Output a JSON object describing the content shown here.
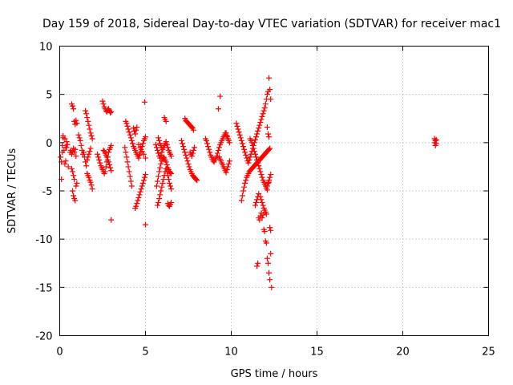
{
  "chart_data": {
    "type": "scatter",
    "title": "Day 159 of 2018, Sidereal Day-to-day VTEC variation (SDTVAR) for receiver mac1",
    "xlabel": "GPS time / hours",
    "ylabel": "SDTVAR / TECUs",
    "xlim": [
      0,
      25
    ],
    "ylim": [
      -20,
      10
    ],
    "xticks": [
      0,
      5,
      10,
      15,
      20,
      25
    ],
    "yticks": [
      -20,
      -15,
      -10,
      -5,
      0,
      5,
      10
    ],
    "xtick_labels": [
      "0",
      "5",
      "10",
      "15",
      "20",
      "25"
    ],
    "ytick_labels": [
      "-20",
      "-15",
      "-10",
      "-5",
      "0",
      "5",
      "10"
    ],
    "grid": true,
    "marker": "+",
    "color": "#ff0000",
    "series": [
      {
        "name": "SDTVAR mac1",
        "x": [
          0.05,
          0.1,
          0.15,
          0.2,
          0.25,
          0.3,
          0.35,
          0.4,
          0.1,
          0.15,
          0.2,
          0.3,
          0.35,
          0.4,
          0.45,
          0.5,
          0.6,
          0.65,
          0.7,
          0.75,
          0.8,
          0.85,
          0.9,
          0.95,
          0.7,
          0.75,
          0.8,
          0.85,
          0.9,
          0.95,
          1.0,
          0.7,
          0.75,
          0.8,
          0.85,
          0.75,
          0.8,
          0.85,
          0.9,
          0.95,
          1.0,
          1.1,
          1.15,
          1.2,
          1.25,
          1.3,
          1.35,
          1.4,
          1.45,
          1.5,
          1.55,
          1.6,
          1.65,
          1.7,
          1.75,
          1.8,
          1.5,
          1.55,
          1.6,
          1.65,
          1.7,
          1.75,
          1.8,
          1.85,
          1.9,
          1.6,
          1.65,
          1.7,
          1.75,
          1.8,
          1.85,
          1.9,
          2.2,
          2.25,
          2.3,
          2.35,
          2.4,
          2.45,
          2.5,
          2.55,
          2.6,
          2.65,
          2.7,
          2.75,
          2.8,
          2.85,
          2.9,
          2.95,
          3.0,
          2.5,
          2.55,
          2.6,
          2.65,
          2.7,
          2.75,
          2.8,
          2.85,
          2.9,
          2.95,
          3.0,
          2.55,
          2.6,
          2.65,
          2.7,
          2.75,
          2.8,
          2.85,
          2.9,
          2.95,
          3.0,
          3.0,
          3.8,
          3.85,
          3.9,
          3.95,
          4.0,
          4.05,
          4.1,
          4.15,
          4.2,
          3.85,
          3.9,
          3.95,
          4.0,
          4.05,
          4.1,
          4.15,
          4.2,
          4.25,
          4.3,
          4.35,
          4.4,
          4.45,
          4.5,
          4.55,
          4.6,
          4.65,
          4.7,
          4.75,
          4.8,
          4.85,
          4.9,
          4.95,
          5.0,
          4.4,
          4.45,
          4.5,
          4.55,
          4.6,
          4.65,
          4.7,
          4.75,
          4.8,
          4.85,
          4.9,
          4.95,
          5.0,
          4.3,
          4.35,
          4.4,
          4.45,
          4.5,
          4.6,
          4.7,
          4.8,
          4.9,
          5.0,
          4.95,
          5.0,
          5.6,
          5.65,
          5.7,
          5.75,
          5.8,
          5.85,
          5.9,
          5.95,
          6.0,
          6.05,
          6.1,
          6.15,
          6.2,
          6.25,
          6.3,
          6.35,
          6.4,
          6.45,
          6.5,
          5.65,
          5.7,
          5.75,
          5.8,
          5.85,
          5.9,
          5.95,
          6.0,
          6.05,
          6.1,
          6.15,
          6.2,
          6.25,
          6.3,
          6.35,
          6.4,
          6.45,
          6.5,
          5.7,
          5.75,
          5.8,
          5.85,
          5.9,
          5.95,
          6.0,
          6.05,
          6.1,
          6.15,
          6.2,
          6.25,
          6.3,
          6.35,
          6.4,
          6.45,
          6.5,
          6.1,
          6.15,
          6.2,
          6.3,
          6.35,
          6.4,
          6.45,
          6.5,
          5.75,
          5.8,
          5.85,
          5.9,
          5.95,
          7.1,
          7.15,
          7.2,
          7.25,
          7.3,
          7.35,
          7.4,
          7.45,
          7.5,
          7.55,
          7.6,
          7.65,
          7.7,
          7.75,
          7.8,
          7.85,
          7.9,
          7.95,
          8.0,
          7.3,
          7.35,
          7.4,
          7.45,
          7.5,
          7.55,
          7.6,
          7.65,
          7.7,
          7.75,
          7.8,
          7.6,
          7.65,
          7.7,
          7.75,
          7.8,
          7.85,
          8.5,
          8.55,
          8.6,
          8.65,
          8.7,
          8.75,
          8.8,
          8.85,
          8.9,
          8.95,
          9.0,
          9.05,
          9.1,
          9.15,
          9.2,
          9.25,
          9.3,
          9.35,
          9.4,
          9.45,
          9.5,
          9.55,
          9.6,
          9.65,
          9.7,
          9.75,
          9.8,
          9.85,
          9.9,
          9.3,
          9.35,
          9.4,
          9.45,
          9.5,
          9.55,
          9.6,
          9.65,
          9.7,
          9.75,
          9.8,
          9.85,
          9.9,
          9.35,
          9.25,
          9.7,
          9.75,
          9.8,
          10.3,
          10.35,
          10.4,
          10.45,
          10.5,
          10.55,
          10.6,
          10.65,
          10.7,
          10.75,
          10.8,
          10.85,
          10.9,
          10.95,
          11.0,
          11.05,
          11.1,
          11.15,
          11.2,
          11.25,
          11.3,
          11.35,
          11.4,
          11.45,
          11.5,
          11.55,
          11.6,
          11.65,
          11.7,
          11.75,
          11.8,
          11.85,
          11.9,
          11.95,
          12.0,
          12.05,
          12.1,
          12.15,
          12.2,
          12.25,
          12.3,
          10.6,
          10.65,
          10.7,
          10.75,
          10.8,
          10.85,
          10.9,
          10.95,
          11.0,
          11.05,
          11.1,
          11.15,
          11.2,
          11.25,
          11.3,
          11.35,
          11.4,
          11.45,
          11.5,
          11.55,
          11.6,
          11.65,
          11.7,
          11.75,
          11.8,
          11.85,
          11.9,
          11.95,
          12.0,
          12.05,
          12.1,
          12.15,
          12.2,
          12.25,
          11.1,
          11.15,
          11.2,
          11.25,
          11.3,
          11.35,
          11.4,
          11.45,
          11.5,
          11.55,
          11.6,
          11.65,
          11.7,
          11.75,
          11.8,
          11.85,
          11.9,
          11.95,
          12.0,
          12.05,
          12.1,
          12.15,
          12.2,
          11.4,
          11.45,
          11.5,
          11.55,
          11.6,
          11.7,
          11.75,
          11.8,
          11.85,
          11.9,
          11.95,
          12.0,
          12.05,
          12.1,
          12.15,
          12.2,
          12.25,
          12.3,
          11.8,
          11.85,
          11.9,
          11.95,
          12.0,
          12.05,
          12.1,
          12.15,
          12.2,
          12.25,
          12.3,
          12.35,
          11.5,
          11.55,
          11.6,
          11.65,
          11.7,
          11.75,
          12.1,
          12.15,
          12.2,
          12.25,
          12.3,
          21.85,
          21.9,
          21.95,
          21.9,
          21.85,
          21.95
        ],
        "y": [
          -1.5,
          -2.0,
          -1.0,
          0.5,
          -0.8,
          -2.2,
          -1.9,
          -0.5,
          -3.8,
          -0.3,
          0.7,
          0.4,
          -0.5,
          0.1,
          -0.2,
          -2.5,
          -1.0,
          -0.8,
          -1.2,
          -0.9,
          -0.6,
          -1.0,
          -0.7,
          -1.4,
          4.0,
          3.8,
          3.5,
          2.2,
          1.9,
          2.3,
          2.0,
          -2.7,
          -3.0,
          -3.4,
          -3.8,
          -5.0,
          -5.5,
          -5.8,
          -6.0,
          -4.5,
          -4.2,
          0.8,
          0.5,
          0.2,
          -0.3,
          -0.8,
          -1.2,
          -1.0,
          -1.5,
          -2.0,
          -2.4,
          -1.8,
          -1.5,
          -1.2,
          -0.9,
          -0.6,
          3.3,
          3.0,
          2.6,
          2.2,
          1.8,
          1.4,
          1.0,
          0.7,
          0.4,
          -3.2,
          -3.4,
          -3.6,
          -3.9,
          -4.1,
          -4.4,
          -4.8,
          -1.2,
          -1.5,
          -1.8,
          -2.1,
          -2.4,
          -2.6,
          -2.8,
          -3.0,
          -3.2,
          -3.0,
          -2.5,
          -2.0,
          -1.5,
          -1.0,
          -0.7,
          -0.5,
          -0.3,
          4.3,
          4.0,
          3.7,
          3.5,
          3.3,
          3.2,
          3.4,
          3.5,
          3.3,
          3.1,
          3.2,
          -0.8,
          -0.9,
          -1.1,
          -1.3,
          -1.5,
          -1.8,
          -2.0,
          -2.3,
          -2.6,
          -2.9,
          -8.0,
          -0.5,
          -1.0,
          -1.5,
          -2.0,
          -2.5,
          -3.0,
          -3.5,
          -4.0,
          -4.5,
          2.2,
          2.0,
          1.7,
          1.4,
          1.1,
          0.8,
          0.5,
          0.2,
          -0.1,
          -0.4,
          -0.6,
          -0.8,
          -1.0,
          -1.2,
          -1.4,
          -1.6,
          -1.3,
          -1.0,
          -0.7,
          -0.4,
          -0.1,
          0.2,
          0.4,
          0.6,
          -6.8,
          -6.6,
          -6.3,
          -6.0,
          -5.7,
          -5.4,
          -5.1,
          -4.8,
          -4.5,
          -4.2,
          -3.9,
          -3.6,
          -3.3,
          1.5,
          1.2,
          0.9,
          1.3,
          1.6,
          -0.2,
          -0.5,
          -0.9,
          -1.2,
          -1.6,
          4.2,
          -8.5,
          -0.2,
          -0.5,
          -0.8,
          -1.1,
          -1.4,
          -1.6,
          -1.3,
          -1.0,
          -0.7,
          -0.5,
          -0.3,
          -0.1,
          0.1,
          -0.2,
          -0.5,
          -0.8,
          -1.0,
          -1.2,
          -1.4,
          -4.5,
          -4.0,
          -3.5,
          -3.0,
          -2.6,
          -2.2,
          -1.9,
          -1.7,
          -1.5,
          -1.6,
          -1.8,
          -2.0,
          -2.3,
          -2.6,
          -2.8,
          -3.0,
          -3.1,
          -3.2,
          -6.5,
          -6.2,
          -5.8,
          -5.4,
          -5.0,
          -4.6,
          -4.2,
          -3.8,
          -3.4,
          -3.0,
          -2.7,
          -3.0,
          -3.4,
          -3.8,
          -4.2,
          -4.5,
          -4.8,
          2.6,
          2.4,
          2.2,
          -6.3,
          -6.5,
          -6.6,
          -6.4,
          -6.2,
          0.5,
          0.2,
          -0.1,
          -0.3,
          -0.5,
          0.2,
          -0.1,
          -0.4,
          -0.7,
          -1.0,
          -1.3,
          -1.6,
          -1.9,
          -2.2,
          -2.5,
          -2.8,
          -3.0,
          -3.2,
          -3.4,
          -3.5,
          -3.6,
          -3.7,
          -3.8,
          -3.9,
          2.5,
          2.3,
          2.2,
          2.1,
          2.0,
          1.9,
          1.8,
          1.7,
          1.6,
          1.5,
          1.3,
          -1.0,
          -1.2,
          -1.4,
          -1.1,
          -0.8,
          -0.5,
          0.4,
          0.2,
          -0.1,
          -0.4,
          -0.7,
          -1.0,
          -1.3,
          -1.5,
          -1.7,
          -1.9,
          -2.0,
          -1.8,
          -1.6,
          -1.4,
          -1.1,
          -0.8,
          -0.5,
          -0.2,
          0.0,
          0.2,
          0.4,
          0.6,
          0.8,
          1.0,
          0.8,
          0.6,
          0.4,
          0.2,
          0.0,
          -1.5,
          -1.7,
          -1.9,
          -2.1,
          -2.3,
          -2.5,
          -2.7,
          -2.9,
          -3.1,
          -2.8,
          -2.5,
          -2.2,
          -1.9,
          4.8,
          3.5,
          1.0,
          0.7,
          0.4,
          2.0,
          1.7,
          1.4,
          1.1,
          0.8,
          0.5,
          0.2,
          -0.1,
          -0.4,
          -0.7,
          -1.0,
          -1.3,
          -1.6,
          -1.9,
          -2.1,
          -1.8,
          -1.5,
          -1.2,
          -0.9,
          -0.6,
          -0.3,
          0.0,
          0.3,
          0.6,
          0.9,
          1.2,
          1.5,
          1.8,
          2.1,
          2.4,
          2.7,
          3.0,
          3.3,
          3.6,
          4.0,
          4.5,
          5.0,
          5.3,
          6.7,
          5.5,
          4.5,
          -6.0,
          -5.5,
          -5.0,
          -4.6,
          -4.2,
          -3.9,
          -3.6,
          -3.4,
          -3.2,
          -3.0,
          -2.9,
          -2.8,
          -2.7,
          -2.6,
          -2.5,
          -2.4,
          -2.3,
          -2.2,
          -2.1,
          -2.0,
          -1.9,
          -1.8,
          -1.7,
          -1.6,
          -1.5,
          -1.4,
          -1.3,
          -1.2,
          -1.1,
          -1.0,
          -0.9,
          -0.8,
          -0.7,
          -0.6,
          0.4,
          0.2,
          0.0,
          -0.3,
          -0.6,
          -0.9,
          -1.2,
          -1.5,
          -1.8,
          -2.1,
          -2.4,
          -2.7,
          -3.0,
          -3.3,
          -3.6,
          -3.9,
          -4.1,
          -4.3,
          -4.5,
          -4.7,
          -4.9,
          -4.2,
          -4.1,
          -6.5,
          -6.2,
          -5.9,
          -5.6,
          -5.3,
          -5.6,
          -5.9,
          -6.2,
          -6.5,
          -6.8,
          -7.0,
          -7.2,
          -7.4,
          -4.5,
          -4.2,
          -3.9,
          -3.6,
          -3.3,
          -7.8,
          -7.5,
          -9.0,
          -9.2,
          -10.2,
          -10.4,
          -12.0,
          -12.5,
          -13.5,
          -14.2,
          -11.5,
          -15.0,
          -12.8,
          -12.5,
          -7.8,
          -8.0,
          -7.6,
          -7.3,
          1.6,
          0.9,
          0.6,
          -8.8,
          -9.1,
          0.4,
          0.2,
          -0.1,
          -0.3,
          0.0,
          0.3
        ]
      }
    ]
  }
}
